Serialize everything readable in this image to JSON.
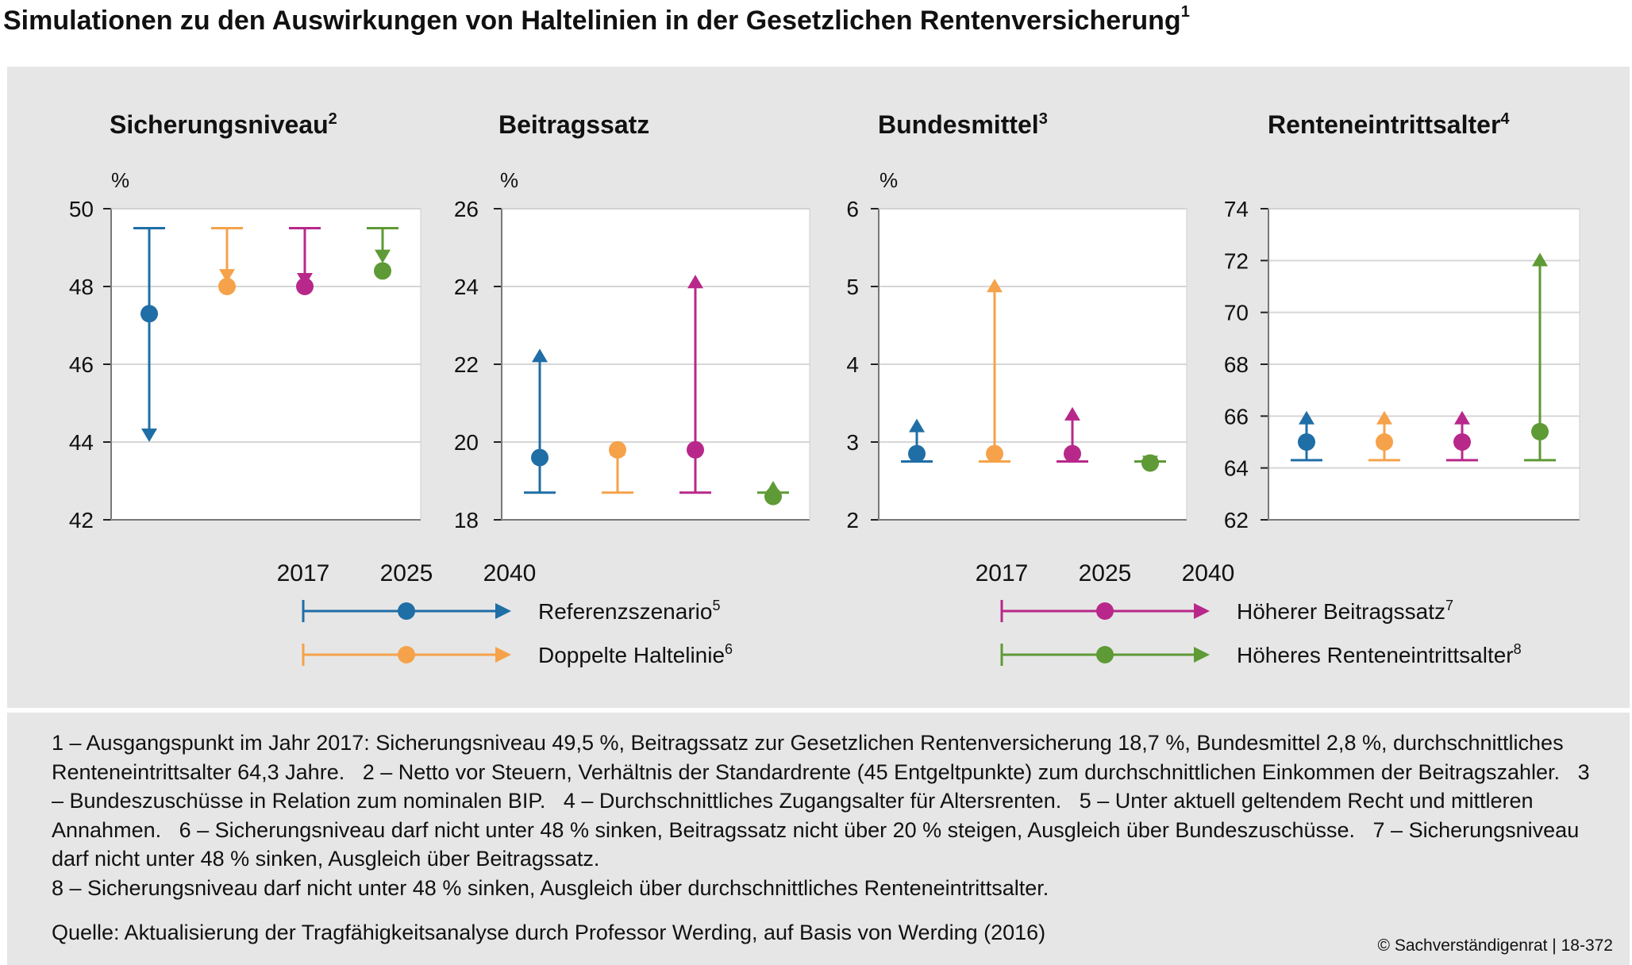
{
  "title": "Simulationen zu den Auswirkungen von Haltelinien in der Gesetzlichen Rentenversicherung",
  "title_footnote": "1",
  "colors": {
    "Referenzszenario": "#1f6ea6",
    "Doppelte Haltelinie": "#f5a24a",
    "Höherer Beitragssatz": "#b8288a",
    "Höheres Renteneintrittsalter": "#5e9a35"
  },
  "chart_data": [
    {
      "type": "range-dot",
      "title": "Sicherungsniveau",
      "footnote": "2",
      "unit": "%",
      "ylim": [
        42,
        50
      ],
      "yticks": [
        "42",
        "44",
        "46",
        "48",
        "50"
      ],
      "grid": true,
      "series": [
        {
          "name": "Referenzszenario",
          "start_2017": 49.5,
          "value_2025": 47.3,
          "value_2040": 44.0
        },
        {
          "name": "Doppelte Haltelinie",
          "start_2017": 49.5,
          "value_2025": 48.0,
          "value_2040": 48.1
        },
        {
          "name": "Höherer Beitragssatz",
          "start_2017": 49.5,
          "value_2025": 48.0,
          "value_2040": 48.0
        },
        {
          "name": "Höheres Renteneintrittsalter",
          "start_2017": 49.5,
          "value_2025": 48.4,
          "value_2040": 48.6
        }
      ]
    },
    {
      "type": "range-dot",
      "title": "Beitragssatz",
      "footnote": "",
      "unit": "%",
      "ylim": [
        18,
        26
      ],
      "yticks": [
        "18",
        "20",
        "22",
        "24",
        "26"
      ],
      "grid": true,
      "series": [
        {
          "name": "Referenzszenario",
          "start_2017": 18.7,
          "value_2025": 19.6,
          "value_2040": 22.4
        },
        {
          "name": "Doppelte Haltelinie",
          "start_2017": 18.7,
          "value_2025": 19.8,
          "value_2040": 20.0
        },
        {
          "name": "Höherer Beitragssatz",
          "start_2017": 18.7,
          "value_2025": 19.8,
          "value_2040": 24.3
        },
        {
          "name": "Höheres Renteneintrittsalter",
          "start_2017": 18.7,
          "value_2025": 18.6,
          "value_2040": 19.0
        }
      ]
    },
    {
      "type": "range-dot",
      "title": "Bundesmittel",
      "footnote": "3",
      "unit": "%",
      "ylim": [
        2,
        6
      ],
      "yticks": [
        "2",
        "3",
        "4",
        "5",
        "6"
      ],
      "grid": true,
      "series": [
        {
          "name": "Referenzszenario",
          "start_2017": 2.75,
          "value_2025": 2.85,
          "value_2040": 3.3
        },
        {
          "name": "Doppelte Haltelinie",
          "start_2017": 2.75,
          "value_2025": 2.85,
          "value_2040": 5.1
        },
        {
          "name": "Höherer Beitragssatz",
          "start_2017": 2.75,
          "value_2025": 2.85,
          "value_2040": 3.45
        },
        {
          "name": "Höheres Renteneintrittsalter",
          "start_2017": 2.75,
          "value_2025": 2.73,
          "value_2040": 2.65
        }
      ]
    },
    {
      "type": "range-dot",
      "title": "Renteneintrittsalter",
      "footnote": "4",
      "unit": "",
      "ylim": [
        62,
        74
      ],
      "yticks": [
        "62",
        "64",
        "66",
        "68",
        "70",
        "72",
        "74"
      ],
      "grid": true,
      "series": [
        {
          "name": "Referenzszenario",
          "start_2017": 64.3,
          "value_2025": 65.0,
          "value_2040": 66.2
        },
        {
          "name": "Doppelte Haltelinie",
          "start_2017": 64.3,
          "value_2025": 65.0,
          "value_2040": 66.2
        },
        {
          "name": "Höherer Beitragssatz",
          "start_2017": 64.3,
          "value_2025": 65.0,
          "value_2040": 66.2
        },
        {
          "name": "Höheres Renteneintrittsalter",
          "start_2017": 64.3,
          "value_2025": 65.4,
          "value_2040": 72.3
        }
      ]
    }
  ],
  "legend": {
    "years": [
      "2017",
      "2025",
      "2040"
    ],
    "items": [
      {
        "label": "Referenzszenario",
        "footnote": "5"
      },
      {
        "label": "Doppelte Haltelinie",
        "footnote": "6"
      },
      {
        "label": "Höherer Beitragssatz",
        "footnote": "7"
      },
      {
        "label": "Höheres Renteneintrittsalter",
        "footnote": "8"
      }
    ]
  },
  "notes": [
    "1 – Ausgangspunkt im Jahr 2017: Sicherungsniveau 49,5 %, Beitragssatz zur Gesetzlichen Rentenversicherung 18,7 %, Bundesmittel 2,8 %, durchschnittliches Renteneintrittsalter 64,3 Jahre.",
    "2 – Netto vor Steuern, Verhältnis der Standardrente (45 Entgeltpunkte) zum durchschnitt­lichen Einkommen der Beitragszahler.",
    "3 – Bundeszuschüsse in Relation zum nominalen BIP.",
    "4 – Durchschnittliches Zugangsalter für Alters­renten.",
    "5 – Unter aktuell geltendem Recht und mittleren Annahmen.",
    "6 – Sicherungsniveau darf nicht unter 48 % sinken, Beitragssatz nicht über 20 % steigen, Ausgleich über Bundeszuschüsse.",
    "7 – Sicherungsniveau darf nicht unter 48 % sinken, Ausgleich über Beitragssatz.",
    "8 – Sicherungsniveau darf nicht unter 48 % sinken, Ausgleich über durchschnittliches Renteneintrittsalter."
  ],
  "source": "Quelle: Aktualisierung der Tragfähigkeitsanalyse durch Professor Werding, auf Basis von Werding (2016)",
  "copyright": "© Sachverständigenrat | 18-372"
}
